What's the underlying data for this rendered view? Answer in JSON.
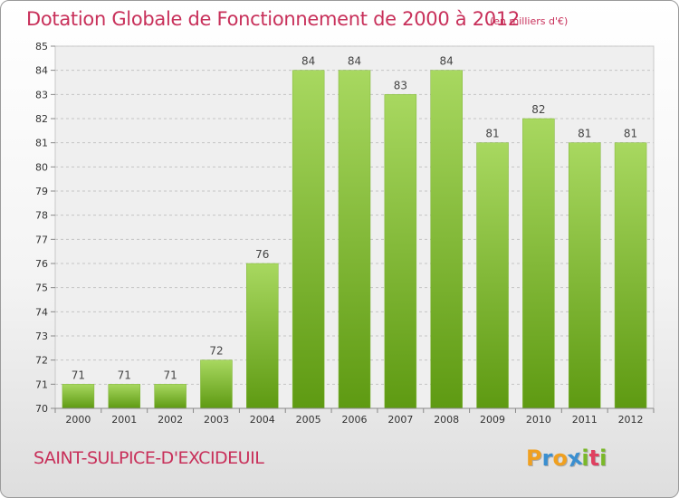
{
  "header": {
    "title": "Dotation Globale de Fonctionnement de 2000 à 2012",
    "unit": "(en milliers d'€)"
  },
  "footer": {
    "commune": "SAINT-SULPICE-D'EXCIDEUIL",
    "logo": {
      "letters": [
        "P",
        "r",
        "o",
        "x",
        "i",
        "t",
        "i"
      ],
      "colors": [
        "#f0a020",
        "#3a8fd0",
        "#f0a020",
        "#3a8fd0",
        "#7ab828",
        "#e04060",
        "#7ab828"
      ]
    }
  },
  "colors": {
    "accent": "#c8305a",
    "bar_light": "#a8d860",
    "bar_dark": "#5e9a12"
  },
  "chart_data": {
    "type": "bar",
    "title": "Dotation Globale de Fonctionnement de 2000 à 2012",
    "subtitle": "(en milliers d'€)",
    "categories": [
      "2000",
      "2001",
      "2002",
      "2003",
      "2004",
      "2005",
      "2006",
      "2007",
      "2008",
      "2009",
      "2010",
      "2011",
      "2012"
    ],
    "values": [
      71,
      71,
      71,
      72,
      76,
      84,
      84,
      83,
      84,
      81,
      82,
      81,
      81
    ],
    "data_labels": [
      "71",
      "71",
      "71",
      "72",
      "76",
      "84",
      "84",
      "83",
      "84",
      "81",
      "82",
      "81",
      "81"
    ],
    "ylim": [
      70,
      85
    ],
    "yticks": [
      70,
      71,
      72,
      73,
      74,
      75,
      76,
      77,
      78,
      79,
      80,
      81,
      82,
      83,
      84,
      85
    ],
    "grid": true,
    "legend": "none"
  }
}
